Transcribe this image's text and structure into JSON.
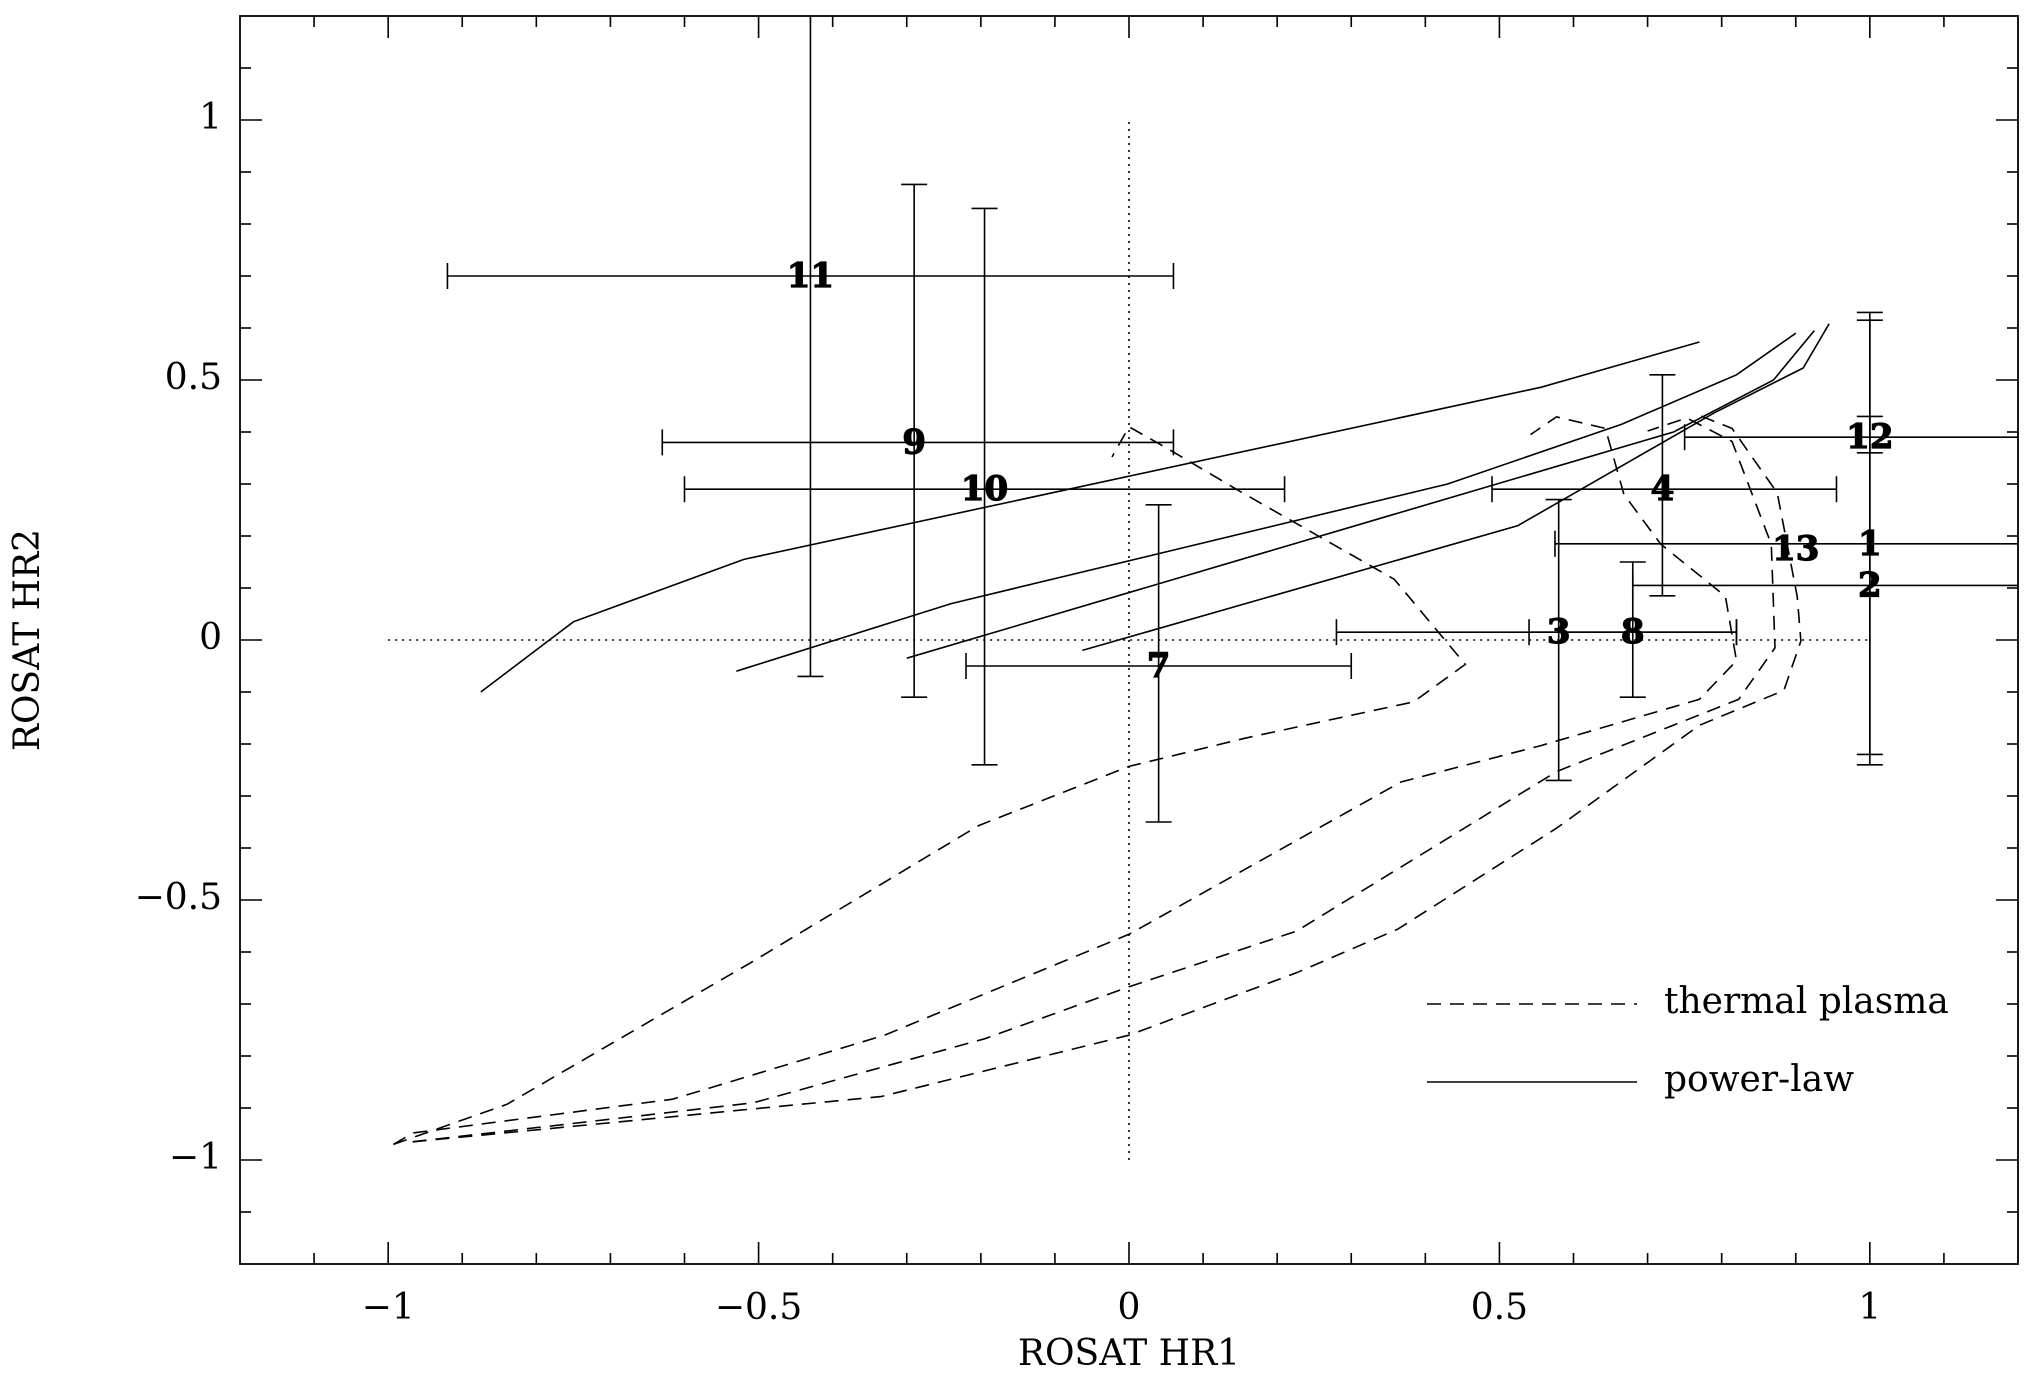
{
  "chart_data": {
    "type": "scatter",
    "xlabel": "ROSAT HR1",
    "ylabel": "ROSAT HR2",
    "xlim": [
      -1.2,
      1.2
    ],
    "ylim": [
      -1.2,
      1.2
    ],
    "xticks": [
      {
        "value": -1,
        "label": "−1"
      },
      {
        "value": -0.5,
        "label": "−0.5"
      },
      0,
      0.5,
      1
    ],
    "yticks": [
      {
        "value": -1,
        "label": "−1"
      },
      {
        "value": -0.5,
        "label": "−0.5"
      },
      0,
      0.5,
      1
    ],
    "xminorticks": [
      -1.1,
      -0.9,
      -0.8,
      -0.7,
      -0.6,
      -0.4,
      -0.3,
      -0.2,
      -0.1,
      0.1,
      0.2,
      0.3,
      0.4,
      0.6,
      0.7,
      0.8,
      0.9,
      1.1
    ],
    "yminorticks": [
      -1.1,
      -0.9,
      -0.8,
      -0.7,
      -0.6,
      -0.4,
      -0.3,
      -0.2,
      -0.1,
      0.1,
      0.2,
      0.3,
      0.4,
      0.6,
      0.7,
      0.8,
      0.9,
      1.1
    ],
    "reference_lines": [
      {
        "x": [
          -1,
          1
        ],
        "y": [
          0,
          0
        ]
      },
      {
        "x": [
          0,
          0
        ],
        "y": [
          -1,
          1
        ]
      }
    ],
    "legend": "lower right",
    "color": "#000000",
    "curves": [
      {
        "name": "thermal plasma",
        "style": "dashed",
        "lines": [
          {
            "x": [
              -0.993,
              -0.84,
              -0.51,
              -0.203,
              0,
              0.156,
              0.384,
              0.454,
              0.358,
              0.147,
              0.05,
              0,
              -0.023
            ],
            "y": [
              -0.97,
              -0.893,
              -0.62,
              -0.357,
              -0.243,
              -0.189,
              -0.119,
              -0.047,
              0.117,
              0.288,
              0.37,
              0.41,
              0.352
            ]
          },
          {
            "x": [
              -0.993,
              -0.967,
              -0.616,
              -0.33,
              0,
              0.367,
              0.556,
              0.77,
              0.82,
              0.805,
              0.718,
              0.668,
              0.643,
              0.577,
              0.542
            ],
            "y": [
              -0.97,
              -0.948,
              -0.883,
              -0.76,
              -0.566,
              -0.273,
              -0.203,
              -0.114,
              -0.04,
              0.084,
              0.184,
              0.28,
              0.407,
              0.429,
              0.395
            ]
          },
          {
            "x": [
              -0.967,
              -0.507,
              -0.195,
              0,
              0.226,
              0.577,
              0.823,
              0.872,
              0.867,
              0.814,
              0.753,
              0.7
            ],
            "y": [
              -0.965,
              -0.89,
              -0.767,
              -0.667,
              -0.56,
              -0.253,
              -0.114,
              -0.015,
              0.184,
              0.382,
              0.427,
              0.402
            ]
          },
          {
            "x": [
              -0.967,
              -0.335,
              0,
              0.226,
              0.363,
              0.577,
              0.77,
              0.884,
              0.907,
              0.902,
              0.875,
              0.814,
              0.77
            ],
            "y": [
              -0.965,
              -0.878,
              -0.76,
              -0.64,
              -0.556,
              -0.362,
              -0.164,
              -0.097,
              -0.002,
              0.084,
              0.283,
              0.407,
              0.432
            ]
          }
        ]
      },
      {
        "name": "power-law",
        "style": "solid",
        "lines": [
          {
            "x": [
              -0.875,
              -0.75,
              -0.52,
              0.556,
              0.77
            ],
            "y": [
              -0.1,
              0.035,
              0.155,
              0.486,
              0.573
            ]
          },
          {
            "x": [
              -0.53,
              -0.24,
              0.43,
              0.665,
              0.82,
              0.9
            ],
            "y": [
              -0.06,
              0.07,
              0.3,
              0.415,
              0.51,
              0.59
            ]
          },
          {
            "x": [
              -0.3,
              0.337,
              0.735,
              0.87,
              0.925
            ],
            "y": [
              -0.035,
              0.233,
              0.4,
              0.5,
              0.595
            ]
          },
          {
            "x": [
              -0.063,
              0.525,
              0.79,
              0.91,
              0.945
            ],
            "y": [
              -0.02,
              0.22,
              0.437,
              0.523,
              0.608
            ]
          }
        ]
      }
    ],
    "points": [
      {
        "label": "11",
        "x": -0.43,
        "y": 0.7,
        "xlo": -0.92,
        "xhi": 0.06,
        "ylo": -0.07,
        "yhi": null
      },
      {
        "label": "9",
        "x": -0.29,
        "y": 0.38,
        "xlo": -0.63,
        "xhi": 0.06,
        "ylo": -0.11,
        "yhi": 0.876
      },
      {
        "label": "10",
        "x": -0.195,
        "y": 0.29,
        "xlo": -0.6,
        "xhi": 0.21,
        "ylo": -0.24,
        "yhi": 0.83
      },
      {
        "label": "7",
        "x": 0.04,
        "y": -0.05,
        "xlo": -0.22,
        "xhi": 0.3,
        "ylo": -0.35,
        "yhi": 0.26
      },
      {
        "label": "3",
        "x": 0.58,
        "y": 0.015,
        "xlo": 0.28,
        "xhi": 0.82,
        "ylo": -0.27,
        "yhi": 0.27
      },
      {
        "label": "8",
        "x": 0.68,
        "y": 0.015,
        "xlo": 0.54,
        "xhi": 0.82,
        "ylo": -0.11,
        "yhi": 0.15
      },
      {
        "label": "4",
        "x": 0.72,
        "y": 0.29,
        "xlo": 0.49,
        "xhi": 0.955,
        "ylo": 0.085,
        "yhi": 0.51
      },
      {
        "label": "13",
        "x": 0.9,
        "y": 0.175,
        "xlo": null,
        "xhi": null,
        "ylo": null,
        "yhi": null
      },
      {
        "label": "1",
        "x": 1.0,
        "y": 0.185,
        "xlo": 0.575,
        "xhi": null,
        "ylo": -0.24,
        "yhi": 0.63
      },
      {
        "label": "2",
        "x": 1.0,
        "y": 0.105,
        "xlo": 0.68,
        "xhi": null,
        "ylo": -0.22,
        "yhi": 0.615
      },
      {
        "label": "12",
        "x": 1.0,
        "y": 0.39,
        "xlo": 0.75,
        "xhi": null,
        "ylo": 0.36,
        "yhi": 0.43
      }
    ]
  }
}
